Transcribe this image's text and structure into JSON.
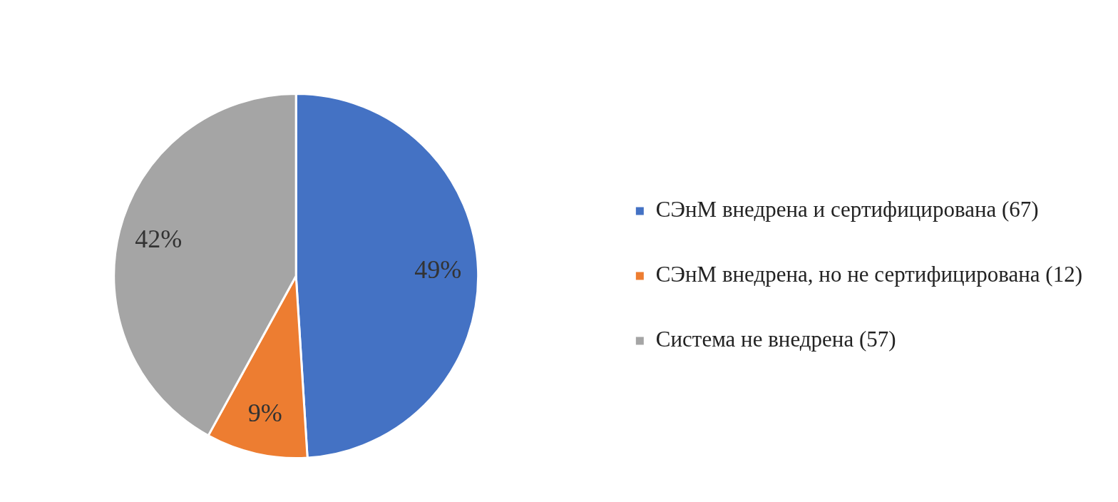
{
  "chart_data": {
    "type": "pie",
    "categories": [
      "СЭнМ внедрена и сертифицирована (67)",
      "СЭнМ внедрена, но не сертифицирована (12)",
      "Система не внедрена (57)"
    ],
    "values": [
      49,
      9,
      42
    ],
    "colors": [
      "#4472c4",
      "#ed7d31",
      "#a5a5a5"
    ],
    "value_labels": [
      "49%",
      "9%",
      "42%"
    ],
    "legend": "right"
  }
}
